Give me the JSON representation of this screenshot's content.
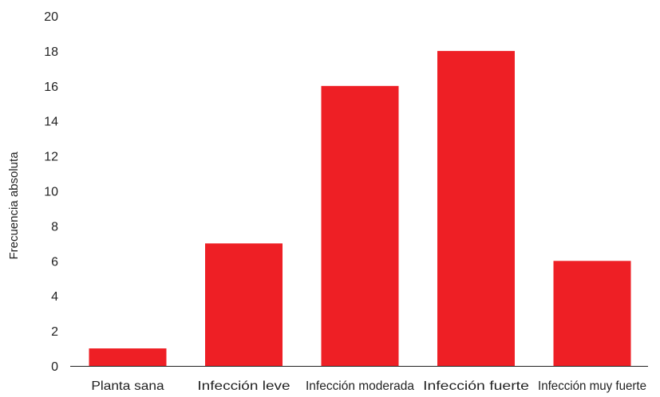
{
  "chart_data": {
    "type": "bar",
    "title": "",
    "xlabel": "",
    "ylabel": "Frecuencia absoluta",
    "categories": [
      "Planta sana",
      "Infección leve",
      "Infección moderada",
      "Infección fuerte",
      "Infección muy fuerte"
    ],
    "values": [
      1,
      7,
      16,
      18,
      6
    ],
    "ylim": [
      0,
      20
    ],
    "yticks": [
      0,
      2,
      4,
      6,
      8,
      10,
      12,
      14,
      16,
      18,
      20
    ],
    "grid": false,
    "legend": "none",
    "bar_color": "#ee1f25",
    "axis_color": "#222222"
  }
}
